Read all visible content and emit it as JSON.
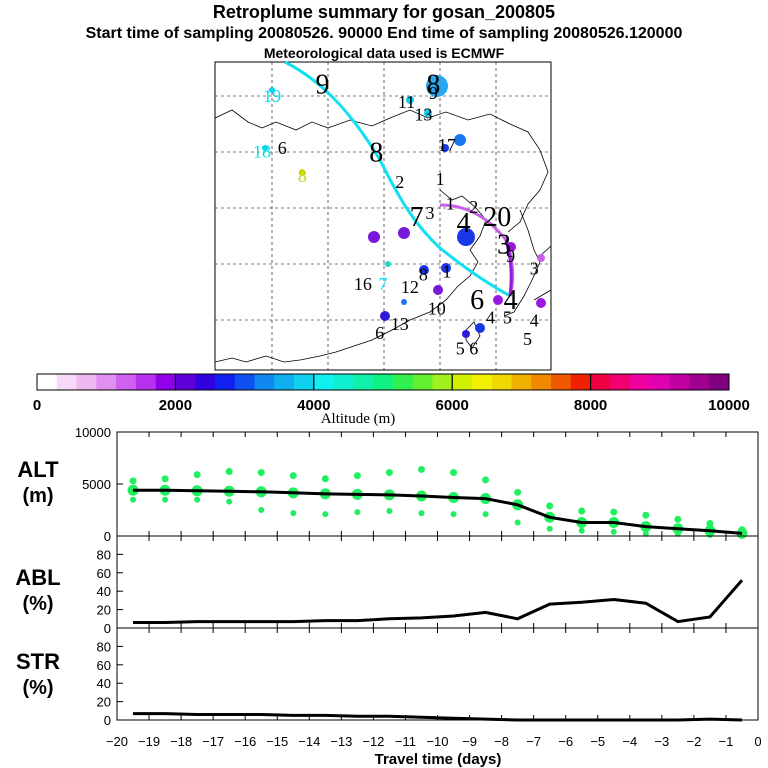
{
  "header": {
    "title": "Retroplume summary for gosan_200805",
    "sampling_line": "Start time of sampling 20080526. 90000     End time of sampling 20080526.120000",
    "met_line": "Meteorological data used is ECMWF"
  },
  "map": {
    "labels": [
      {
        "t": "19",
        "u": 0.17,
        "v": 0.11,
        "c": "#00e0f0",
        "s": 0
      },
      {
        "t": "9",
        "u": 0.32,
        "v": 0.07,
        "c": "#000000",
        "s": 1
      },
      {
        "t": "8",
        "u": 0.48,
        "v": 0.29,
        "c": "#000000",
        "s": 1
      },
      {
        "t": "18",
        "u": 0.14,
        "v": 0.29,
        "c": "#00e0f0",
        "s": 0
      },
      {
        "t": "6",
        "u": 0.2,
        "v": 0.28,
        "c": "#000000",
        "s": 0
      },
      {
        "t": "8",
        "u": 0.26,
        "v": 0.37,
        "c": "#c8d000",
        "s": 0
      },
      {
        "t": "11",
        "u": 0.57,
        "v": 0.13,
        "c": "#000000",
        "s": 0
      },
      {
        "t": "13",
        "u": 0.62,
        "v": 0.17,
        "c": "#000000",
        "s": 0
      },
      {
        "t": "8",
        "u": 0.65,
        "v": 0.07,
        "c": "#000000",
        "s": 1
      },
      {
        "t": "9",
        "u": 0.65,
        "v": 0.1,
        "c": "#000000",
        "s": 0
      },
      {
        "t": "17",
        "u": 0.69,
        "v": 0.27,
        "c": "#000000",
        "s": 0
      },
      {
        "t": "2",
        "u": 0.55,
        "v": 0.39,
        "c": "#000000",
        "s": 0
      },
      {
        "t": "1",
        "u": 0.67,
        "v": 0.38,
        "c": "#000000",
        "s": 0
      },
      {
        "t": "7",
        "u": 0.6,
        "v": 0.5,
        "c": "#000000",
        "s": 1
      },
      {
        "t": "3",
        "u": 0.64,
        "v": 0.49,
        "c": "#000000",
        "s": 0
      },
      {
        "t": "1",
        "u": 0.7,
        "v": 0.46,
        "c": "#000000",
        "s": 0
      },
      {
        "t": "2",
        "u": 0.77,
        "v": 0.47,
        "c": "#000000",
        "s": 0
      },
      {
        "t": "4",
        "u": 0.74,
        "v": 0.52,
        "c": "#000000",
        "s": 1
      },
      {
        "t": "20",
        "u": 0.84,
        "v": 0.5,
        "c": "#000000",
        "s": 1
      },
      {
        "t": "3",
        "u": 0.86,
        "v": 0.59,
        "c": "#000000",
        "s": 1
      },
      {
        "t": "9",
        "u": 0.88,
        "v": 0.63,
        "c": "#000000",
        "s": 0
      },
      {
        "t": "3",
        "u": 0.95,
        "v": 0.67,
        "c": "#000000",
        "s": 0
      },
      {
        "t": "8",
        "u": 0.62,
        "v": 0.69,
        "c": "#000000",
        "s": 0
      },
      {
        "t": "1",
        "u": 0.69,
        "v": 0.68,
        "c": "#000000",
        "s": 0
      },
      {
        "t": "16",
        "u": 0.44,
        "v": 0.72,
        "c": "#000000",
        "s": 0
      },
      {
        "t": "7",
        "u": 0.5,
        "v": 0.72,
        "c": "#00e0f0",
        "s": 0
      },
      {
        "t": "12",
        "u": 0.58,
        "v": 0.73,
        "c": "#000000",
        "s": 0
      },
      {
        "t": "6",
        "u": 0.78,
        "v": 0.77,
        "c": "#000000",
        "s": 1
      },
      {
        "t": "4",
        "u": 0.88,
        "v": 0.77,
        "c": "#000000",
        "s": 1
      },
      {
        "t": "10",
        "u": 0.66,
        "v": 0.8,
        "c": "#000000",
        "s": 0
      },
      {
        "t": "4",
        "u": 0.82,
        "v": 0.83,
        "c": "#000000",
        "s": 0
      },
      {
        "t": "5",
        "u": 0.87,
        "v": 0.83,
        "c": "#000000",
        "s": 0
      },
      {
        "t": "4",
        "u": 0.95,
        "v": 0.84,
        "c": "#000000",
        "s": 0
      },
      {
        "t": "13",
        "u": 0.55,
        "v": 0.85,
        "c": "#000000",
        "s": 0
      },
      {
        "t": "6",
        "u": 0.49,
        "v": 0.88,
        "c": "#000000",
        "s": 0
      },
      {
        "t": "5",
        "u": 0.93,
        "v": 0.9,
        "c": "#000000",
        "s": 0
      },
      {
        "t": "5",
        "u": 0.73,
        "v": 0.93,
        "c": "#000000",
        "s": 0
      },
      {
        "t": "6",
        "u": 0.77,
        "v": 0.93,
        "c": "#000000",
        "s": 0
      }
    ]
  },
  "colorbar": {
    "ticks": [
      "0",
      "2000",
      "4000",
      "6000",
      "8000",
      "10000"
    ],
    "label": "Altitude (m)",
    "colors": [
      "#ffffff",
      "#f8d8f8",
      "#f0b8f0",
      "#e090f0",
      "#d060f0",
      "#b830f0",
      "#9000e8",
      "#6000d8",
      "#3000e0",
      "#1020f0",
      "#1050f0",
      "#1088f0",
      "#10b0f0",
      "#10d0f0",
      "#10f0f0",
      "#10f0d0",
      "#10f0a8",
      "#10f080",
      "#30f050",
      "#60f030",
      "#a0f020",
      "#d0f000",
      "#f0f000",
      "#f0d800",
      "#f0b000",
      "#f08800",
      "#f05800",
      "#f02000",
      "#f00040",
      "#f00070",
      "#f000a0",
      "#e000b0",
      "#c000a0",
      "#a00090",
      "#800080"
    ]
  },
  "chart_data": [
    {
      "type": "scatter+line",
      "name": "ALT",
      "ylabel": "ALT (m)",
      "ylim": [
        0,
        10000
      ],
      "yticks": [
        "0",
        "5000",
        "10000"
      ],
      "x_days": [
        -19.5,
        -18.5,
        -17.5,
        -16.5,
        -15.5,
        -14.5,
        -13.5,
        -12.5,
        -11.5,
        -10.5,
        -9.5,
        -8.5,
        -7.5,
        -6.5,
        -5.5,
        -4.5,
        -3.5,
        -2.5,
        -1.5,
        -0.5
      ],
      "median_alt": [
        4400,
        4400,
        4350,
        4300,
        4250,
        4150,
        4050,
        4000,
        3950,
        3850,
        3700,
        3600,
        3000,
        1800,
        1300,
        1300,
        900,
        700,
        500,
        250
      ],
      "upper_alt": [
        5300,
        5500,
        5900,
        6200,
        6100,
        5800,
        5500,
        5800,
        6100,
        6400,
        6100,
        5400,
        4200,
        2900,
        2400,
        2300,
        2000,
        1600,
        1200,
        600
      ],
      "lower_alt": [
        3500,
        3500,
        3500,
        3300,
        2500,
        2200,
        2100,
        2300,
        2400,
        2200,
        2100,
        2100,
        1300,
        700,
        500,
        400,
        200,
        200,
        100,
        50
      ]
    },
    {
      "type": "line",
      "name": "ABL",
      "ylabel": "ABL (%)",
      "ylim": [
        0,
        100
      ],
      "yticks": [
        "0",
        "20",
        "40",
        "60",
        "80"
      ],
      "x_days": [
        -19.5,
        -18.5,
        -17.5,
        -16.5,
        -15.5,
        -14.5,
        -13.5,
        -12.5,
        -11.5,
        -10.5,
        -9.5,
        -8.5,
        -7.5,
        -6.5,
        -5.5,
        -4.5,
        -3.5,
        -2.5,
        -1.5,
        -0.5
      ],
      "values": [
        6,
        6,
        7,
        7,
        7,
        7,
        8,
        8,
        10,
        11,
        13,
        17,
        10,
        26,
        28,
        31,
        27,
        7,
        12,
        52
      ]
    },
    {
      "type": "line",
      "name": "STR",
      "ylabel": "STR (%)",
      "ylim": [
        0,
        100
      ],
      "yticks": [
        "0",
        "20",
        "40",
        "60",
        "80"
      ],
      "x_days": [
        -19.5,
        -18.5,
        -17.5,
        -16.5,
        -15.5,
        -14.5,
        -13.5,
        -12.5,
        -11.5,
        -10.5,
        -9.5,
        -8.5,
        -7.5,
        -6.5,
        -5.5,
        -4.5,
        -3.5,
        -2.5,
        -1.5,
        -0.5
      ],
      "values": [
        7,
        7,
        6,
        6,
        6,
        5,
        5,
        4,
        4,
        3,
        2,
        1,
        0,
        0,
        0,
        0,
        0,
        0,
        1,
        0
      ]
    }
  ],
  "xaxis": {
    "ticks": [
      "−20",
      "−19",
      "−18",
      "−17",
      "−16",
      "−15",
      "−14",
      "−13",
      "−12",
      "−11",
      "−10",
      "−9",
      "−8",
      "−7",
      "−6",
      "−5",
      "−4",
      "−3",
      "−2",
      "−1",
      "0"
    ],
    "xlim": [
      -20,
      0
    ],
    "label": "Travel time (days)"
  },
  "panel_labels": {
    "alt_1": "ALT",
    "alt_2": "(m)",
    "abl_1": "ABL",
    "abl_2": "(%)",
    "str_1": "STR",
    "str_2": "(%)"
  }
}
